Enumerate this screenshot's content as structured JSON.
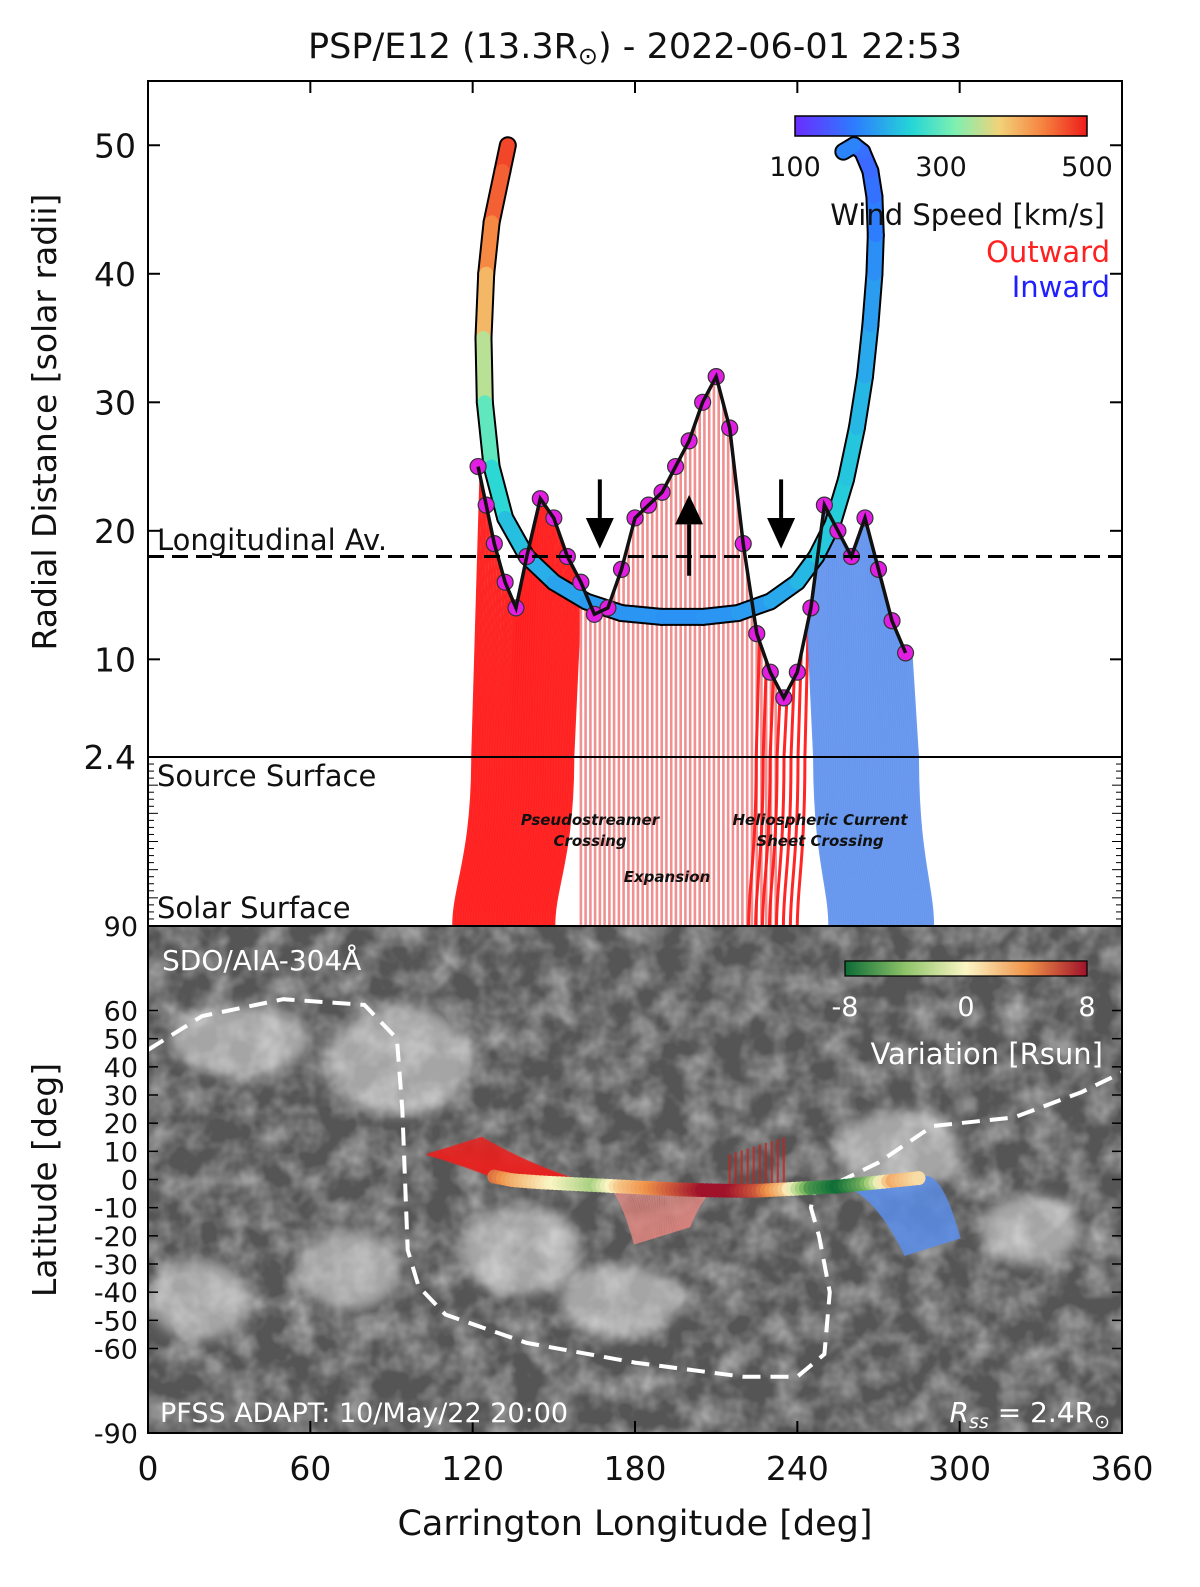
{
  "chart_data": {
    "type": "line",
    "title": "PSP/E12 (13.3R",
    "title_sun_symbol": "⊙",
    "title_suffix": ") - 2022-06-01 22:53",
    "x": {
      "label": "Carrington Longitude [deg]",
      "range": [
        0,
        360
      ],
      "ticks": [
        "0",
        "60",
        "120",
        "180",
        "240",
        "300",
        "360"
      ],
      "tick_values": [
        0,
        60,
        120,
        180,
        240,
        300,
        360
      ]
    },
    "top_panel": {
      "ylabel": "Radial Distance [solar radii]",
      "yrange": [
        2.4,
        55
      ],
      "yticks": [
        "2.4",
        "10",
        "20",
        "30",
        "40",
        "50"
      ],
      "ytick_values": [
        2.4,
        10,
        20,
        30,
        40,
        50
      ],
      "longitudinal_average": 18,
      "longitudinal_average_label": "Longitudinal Av.",
      "trajectory_speed_colored": {
        "lon": [
          133,
          131,
          127,
          125,
          124,
          124.5,
          127,
          132,
          140,
          150,
          162,
          175,
          190,
          205,
          218,
          230,
          240,
          247,
          253,
          258,
          262,
          265,
          267,
          268.5,
          269,
          268.5,
          267,
          264,
          261,
          257
        ],
        "r": [
          50,
          48,
          44,
          40,
          35,
          30,
          25,
          21,
          18,
          16,
          14.5,
          13.6,
          13.3,
          13.3,
          13.6,
          14.5,
          16,
          18,
          20.5,
          24,
          28,
          32,
          36,
          40,
          43,
          46,
          48,
          49.5,
          50,
          49.5
        ],
        "speed": [
          480,
          470,
          450,
          420,
          380,
          320,
          280,
          250,
          230,
          220,
          210,
          205,
          200,
          200,
          205,
          215,
          225,
          240,
          255,
          250,
          240,
          225,
          215,
          205,
          190,
          175,
          165,
          160,
          175,
          200
        ]
      },
      "colorbar": {
        "ticks": [
          "100",
          "300",
          "500"
        ],
        "tick_values": [
          100,
          300,
          500
        ],
        "label": "Wind Speed [km/s]"
      },
      "legend": [
        {
          "label": "Outward",
          "color": "#ff2020"
        },
        {
          "label": "Inward",
          "color": "#1f1fff"
        }
      ],
      "source_surface_profile": {
        "lon": [
          122,
          125,
          128,
          132,
          136,
          140,
          145,
          150,
          155,
          160,
          165,
          170,
          175,
          180,
          185,
          190,
          195,
          200,
          205,
          210,
          215,
          220,
          225,
          230,
          235,
          240,
          245,
          250,
          255,
          260,
          265,
          270,
          275,
          280
        ],
        "r": [
          25,
          22,
          19,
          16,
          14,
          18,
          22.5,
          21,
          18,
          16,
          13.5,
          14,
          17,
          21,
          22,
          23,
          25,
          27,
          30,
          32,
          28,
          19,
          12,
          9,
          7,
          9,
          14,
          22,
          20,
          18,
          21,
          17,
          13,
          10.5
        ]
      },
      "arrows": [
        {
          "lon": 167,
          "direction": "down"
        },
        {
          "lon": 200,
          "direction": "up"
        },
        {
          "lon": 234,
          "direction": "down"
        }
      ],
      "annotations": [
        "Pseudostreamer",
        "Crossing",
        "Expansion",
        "Heliospheric Current",
        "Sheet Crossing"
      ]
    },
    "middle_panel": {
      "top_label": "Source Surface",
      "bottom_label": "Solar Surface"
    },
    "bottom_panel": {
      "ylabel": "Latitude [deg]",
      "yrange": [
        -90,
        90
      ],
      "yticks": [
        "90",
        "60",
        "50",
        "40",
        "30",
        "20",
        "10",
        "0",
        "-10",
        "-20",
        "-30",
        "-40",
        "-50",
        "-60",
        "-90"
      ],
      "ytick_values": [
        90,
        60,
        50,
        40,
        30,
        20,
        10,
        0,
        -10,
        -20,
        -30,
        -40,
        -50,
        -60,
        -90
      ],
      "image_label": "SDO/AIA-304Å",
      "pfss_label": "PFSS ADAPT: 10/May/22 20:00",
      "rss_label": "R",
      "rss_sub": "ss",
      "rss_value": " = 2.4R",
      "rss_sun": "⊙",
      "colorbar": {
        "ticks": [
          "-8",
          "0",
          "8"
        ],
        "tick_values": [
          -8,
          0,
          8
        ],
        "label": "Variation [Rsun]"
      },
      "neutral_line": {
        "lon": [
          0,
          20,
          50,
          80,
          92,
          94,
          95,
          96,
          100,
          110,
          140,
          180,
          220,
          240,
          250,
          252,
          248,
          245,
          246,
          255,
          270,
          290,
          320,
          345,
          360
        ],
        "lat": [
          46,
          58,
          64,
          62,
          50,
          25,
          0,
          -25,
          -38,
          -48,
          -58,
          -65,
          -70,
          -70,
          -62,
          -40,
          -20,
          -10,
          -5,
          -1,
          6,
          19,
          22,
          31,
          38
        ]
      },
      "footpoint_track": {
        "lon": [
          128,
          135,
          145,
          155,
          165,
          175,
          185,
          195,
          205,
          215,
          225,
          235,
          245,
          255,
          265,
          275,
          285
        ],
        "lat": [
          1,
          -0.3,
          -1,
          -1.5,
          -2,
          -2.5,
          -3,
          -3.5,
          -3.8,
          -4,
          -4,
          -3.5,
          -3,
          -2.5,
          -1.5,
          -0.5,
          0.5
        ],
        "variation": [
          5,
          3,
          1,
          -1,
          -3,
          2,
          4,
          6,
          8,
          8,
          6,
          2,
          -6,
          -8,
          -5,
          3,
          1
        ]
      }
    }
  }
}
